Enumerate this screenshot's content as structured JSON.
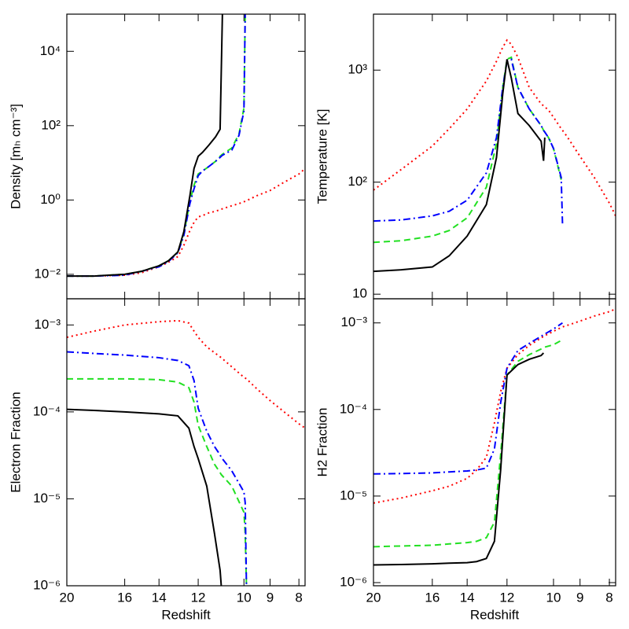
{
  "chart_data": [
    {
      "type": "line",
      "ylabel": "Density [mₕ cm⁻³]",
      "xscale": "log(1+z)",
      "yscale": "log",
      "xtick_labels": false,
      "xlim": [
        20,
        7.8
      ],
      "xticks": [
        20,
        16,
        14,
        12,
        10,
        9,
        8
      ],
      "ylim": [
        0.0022,
        100000
      ],
      "yticks": [
        {
          "value": 0.01,
          "label": "10⁻²"
        },
        {
          "value": 1,
          "label": "10⁰"
        },
        {
          "value": 100,
          "label": "10²"
        },
        {
          "value": 10000,
          "label": "10⁴"
        }
      ],
      "x": [
        20,
        18,
        16,
        15,
        14,
        13.5,
        13,
        12.7,
        12.4,
        12.2,
        12,
        11.8,
        11.5,
        11.2,
        11,
        10.9,
        10.5,
        10.2,
        10,
        9.95,
        9.5,
        9,
        8.5,
        8,
        7.8
      ],
      "series": [
        {
          "color": "#ff0000",
          "dash": "dotted",
          "values": [
            0.009,
            0.009,
            0.0095,
            0.011,
            0.016,
            0.021,
            0.03,
            0.06,
            0.15,
            0.25,
            0.35,
            0.38,
            0.45,
            0.5,
            0.55,
            0.58,
            0.7,
            0.8,
            0.9,
            0.92,
            1.3,
            1.8,
            3,
            5,
            7
          ]
        },
        {
          "color": "#22e022",
          "dash": "dashed",
          "values": [
            0.009,
            0.009,
            0.01,
            0.012,
            0.017,
            0.023,
            0.04,
            0.12,
            0.9,
            2.5,
            5,
            6,
            8,
            11,
            15,
            17,
            25,
            60,
            300,
            100000,
            null,
            null,
            null,
            null,
            null
          ]
        },
        {
          "color": "#0000ff",
          "dash": "dashdot",
          "values": [
            0.009,
            0.009,
            0.0095,
            0.012,
            0.016,
            0.022,
            0.038,
            0.11,
            0.8,
            2,
            4.5,
            6,
            8,
            11,
            14,
            16,
            22,
            55,
            250,
            100000,
            null,
            null,
            null,
            null,
            null
          ]
        },
        {
          "color": "#000000",
          "dash": "solid",
          "values": [
            0.009,
            0.009,
            0.01,
            0.012,
            0.017,
            0.023,
            0.04,
            0.14,
            1.3,
            7,
            15,
            19,
            30,
            50,
            80,
            100000,
            null,
            null,
            null,
            null,
            null,
            null,
            null,
            null,
            null
          ]
        }
      ]
    },
    {
      "type": "line",
      "ylabel": "Temperature [K]",
      "xscale": "log(1+z)",
      "yscale": "log",
      "xtick_labels": false,
      "xlim": [
        20,
        7.8
      ],
      "xticks": [
        20,
        16,
        14,
        12,
        10,
        9,
        8
      ],
      "ylim": [
        9.1,
        3160
      ],
      "yticks": [
        10,
        {
          "value": 100,
          "label": "10²"
        },
        {
          "value": 1000,
          "label": "10³"
        }
      ],
      "x": [
        20,
        18,
        16,
        15,
        14,
        13,
        12.5,
        12.2,
        12,
        11.8,
        11.5,
        11,
        10.5,
        10.4,
        10.35,
        10.2,
        10,
        9.7,
        9.65,
        9.5,
        9,
        8.5,
        8,
        7.8
      ],
      "series": [
        {
          "color": "#ff0000",
          "dash": "dotted",
          "values": [
            85,
            130,
            210,
            300,
            450,
            800,
            1200,
            1600,
            1850,
            1700,
            1300,
            700,
            500,
            480,
            470,
            440,
            380,
            300,
            290,
            260,
            170,
            110,
            65,
            50
          ]
        },
        {
          "color": "#22e022",
          "dash": "dashed",
          "values": [
            29,
            30,
            33,
            37,
            48,
            90,
            220,
            700,
            1250,
            1300,
            700,
            450,
            320,
            290,
            280,
            250,
            200,
            105,
            null,
            null,
            null,
            null,
            null,
            null
          ]
        },
        {
          "color": "#0000ff",
          "dash": "dashdot",
          "values": [
            45,
            46,
            50,
            55,
            69,
            121,
            250,
            700,
            1200,
            1250,
            700,
            450,
            320,
            290,
            280,
            250,
            200,
            110,
            42,
            null,
            null,
            null,
            null,
            null
          ]
        },
        {
          "color": "#000000",
          "dash": "solid",
          "values": [
            16,
            16.5,
            17.5,
            22,
            33,
            63,
            166,
            616,
            1250,
            850,
            410,
            320,
            232,
            155,
            250,
            null,
            null,
            null,
            null,
            null,
            null,
            null,
            null,
            null
          ]
        }
      ]
    },
    {
      "type": "line",
      "ylabel": "Electron Fraction",
      "xlabel": "Redshift",
      "xscale": "log(1+z)",
      "yscale": "log",
      "xlim": [
        20,
        7.8
      ],
      "xticks": [
        20,
        16,
        14,
        12,
        10,
        9,
        8
      ],
      "ylim": [
        1e-06,
        0.002
      ],
      "yticks": [
        {
          "value": 0.001,
          "label": "10⁻³"
        },
        {
          "value": 0.0001,
          "label": "10⁻⁴"
        },
        {
          "value": 1e-05,
          "label": "10⁻⁵"
        },
        {
          "value": 1e-06,
          "label": "10⁻⁶"
        }
      ],
      "x": [
        20,
        18,
        16,
        14,
        13,
        12.45,
        12.2,
        12,
        11.6,
        11.25,
        11,
        10.95,
        10.5,
        10,
        9.95,
        9.9,
        9.5,
        9,
        8.5,
        8,
        7.8
      ],
      "series": [
        {
          "color": "#ff0000",
          "dash": "dotted",
          "values": [
            0.00072,
            0.00085,
            0.001,
            0.00109,
            0.00112,
            0.00105,
            0.00085,
            0.00072,
            0.00056,
            0.00048,
            0.00043,
            0.00042,
            0.00033,
            0.00025,
            0.000245,
            0.00024,
            0.000185,
            0.000135,
            0.0001,
            7.3e-05,
            6.5e-05
          ]
        },
        {
          "color": "#22e022",
          "dash": "dashed",
          "values": [
            0.00024,
            0.00024,
            0.00024,
            0.000235,
            0.00022,
            0.00019,
            0.00013,
            7e-05,
            4e-05,
            2.5e-05,
            2e-05,
            1.9e-05,
            1.4e-05,
            7e-06,
            4e-06,
            1e-06,
            null,
            null,
            null,
            null,
            null
          ]
        },
        {
          "color": "#0000ff",
          "dash": "dashdot",
          "values": [
            0.00049,
            0.00047,
            0.00045,
            0.00042,
            0.00039,
            0.00034,
            0.00023,
            0.00011,
            6e-05,
            4e-05,
            3.2e-05,
            3e-05,
            2.1e-05,
            1.2e-05,
            9e-06,
            1e-06,
            null,
            null,
            null,
            null,
            null
          ]
        },
        {
          "color": "#000000",
          "dash": "solid",
          "values": [
            0.000107,
            0.000104,
            0.0001,
            9.5e-05,
            9e-05,
            6.5e-05,
            4e-05,
            2.9e-05,
            1.4e-05,
            4e-06,
            1.5e-06,
            1e-06,
            null,
            null,
            null,
            null,
            null,
            null,
            null,
            null,
            null
          ]
        }
      ]
    },
    {
      "type": "line",
      "ylabel": "H2 Fraction",
      "xlabel": "Redshift",
      "xscale": "log(1+z)",
      "yscale": "log",
      "xlim": [
        20,
        7.8
      ],
      "xticks": [
        20,
        16,
        14,
        12,
        10,
        9,
        8
      ],
      "ylim": [
        9.2e-07,
        0.0019
      ],
      "yticks": [
        {
          "value": 0.001,
          "label": "10⁻³"
        },
        {
          "value": 0.0001,
          "label": "10⁻⁴"
        },
        {
          "value": 1e-05,
          "label": "10⁻⁵"
        },
        {
          "value": 1e-06,
          "label": "10⁻⁶"
        }
      ],
      "x": [
        20,
        18,
        16,
        15,
        14,
        13.5,
        13,
        12.6,
        12.3,
        12,
        11.5,
        11,
        10.5,
        10.4,
        10,
        9.65,
        9.5,
        9,
        8.5,
        8,
        7.8
      ],
      "series": [
        {
          "color": "#ff0000",
          "dash": "dotted",
          "values": [
            8.3e-06,
            9.5e-06,
            1.15e-05,
            1.3e-05,
            1.6e-05,
            2e-05,
            2.8e-05,
            7e-05,
            0.00016,
            0.0003,
            0.00043,
            0.00055,
            0.00067,
            0.0007,
            0.0008,
            0.0009,
            0.00093,
            0.00105,
            0.0012,
            0.00135,
            0.00145
          ]
        },
        {
          "color": "#22e022",
          "dash": "dashed",
          "values": [
            2.6e-06,
            2.65e-06,
            2.7e-06,
            2.8e-06,
            2.9e-06,
            3e-06,
            3.3e-06,
            5e-06,
            3e-05,
            0.00025,
            0.00036,
            0.00043,
            0.0005,
            0.00052,
            0.00056,
            0.00064,
            null,
            null,
            null,
            null,
            null
          ]
        },
        {
          "color": "#0000ff",
          "dash": "dashdot",
          "values": [
            1.8e-05,
            1.82e-05,
            1.85e-05,
            1.9e-05,
            1.95e-05,
            2e-05,
            2.1e-05,
            3.5e-05,
            0.00012,
            0.0003,
            0.00048,
            0.00058,
            0.0007,
            0.00073,
            0.00085,
            0.001,
            null,
            null,
            null,
            null,
            null
          ]
        },
        {
          "color": "#000000",
          "dash": "solid",
          "values": [
            1.6e-06,
            1.62e-06,
            1.65e-06,
            1.68e-06,
            1.7e-06,
            1.75e-06,
            1.9e-06,
            3e-06,
            2e-05,
            0.00025,
            0.00033,
            0.00038,
            0.00042,
            0.00045,
            null,
            null,
            null,
            null,
            null,
            null,
            null
          ]
        }
      ]
    }
  ]
}
